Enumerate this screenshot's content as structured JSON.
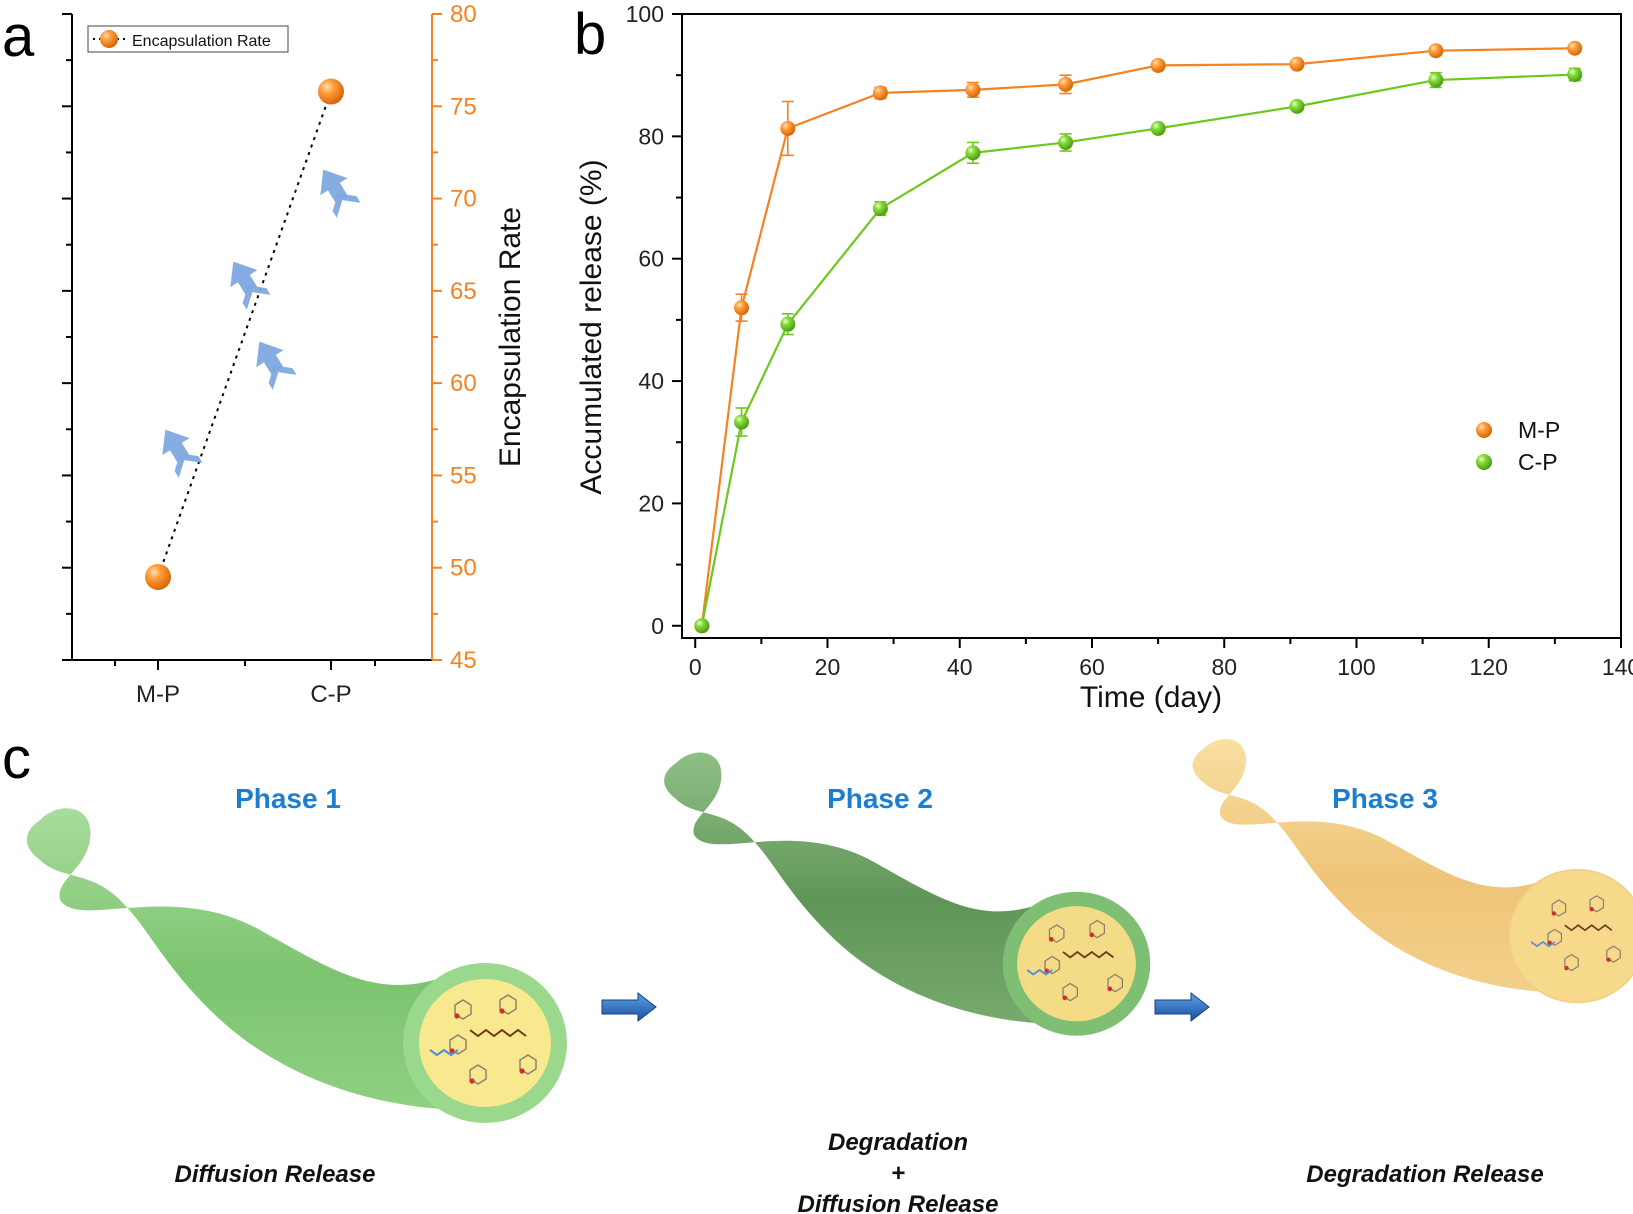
{
  "panels": {
    "a": "a",
    "b": "b",
    "c": "c"
  },
  "chart_data": [
    {
      "type": "scatter",
      "panel": "a",
      "categories": [
        "M-P",
        "C-P"
      ],
      "series": [
        {
          "name": "Encapsulation Rate",
          "values": [
            49.5,
            75.8
          ],
          "color": "#f58220"
        }
      ],
      "ylabel": "Encapsulation Rate",
      "ylim": [
        45,
        80
      ],
      "yticks": [
        45,
        50,
        55,
        60,
        65,
        70,
        75,
        80
      ],
      "ytick_labels": [
        "45",
        "50",
        "55",
        "60",
        "65",
        "70",
        "75",
        "80"
      ],
      "axis_color": "#f58220",
      "line_style": "dotted",
      "decoration": "arrow-up-icon",
      "legend": "top-left"
    },
    {
      "type": "line",
      "panel": "b",
      "xlabel": "Time (day)",
      "ylabel": "Accumulated release (%)",
      "xlim": [
        -2,
        140
      ],
      "ylim": [
        -2,
        100
      ],
      "xticks": [
        0,
        20,
        40,
        60,
        80,
        100,
        120,
        140
      ],
      "xtick_labels": [
        "0",
        "20",
        "40",
        "60",
        "80",
        "100",
        "120",
        "140"
      ],
      "yticks": [
        0,
        20,
        40,
        60,
        80,
        100
      ],
      "ytick_labels": [
        "0",
        "20",
        "40",
        "60",
        "80",
        "100"
      ],
      "legend": "right",
      "series": [
        {
          "name": "M-P",
          "color": "#f58220",
          "x": [
            1,
            7,
            14,
            28,
            42,
            56,
            70,
            91,
            112,
            133
          ],
          "y": [
            0,
            52,
            81.3,
            87.1,
            87.6,
            88.5,
            91.6,
            91.8,
            94,
            94.4
          ],
          "err": [
            0.5,
            2.2,
            4.4,
            0.9,
            1.2,
            1.5,
            0.7,
            0.6,
            0.7,
            0.6
          ]
        },
        {
          "name": "C-P",
          "color": "#6cc91c",
          "x": [
            1,
            7,
            14,
            28,
            42,
            56,
            70,
            91,
            112,
            133
          ],
          "y": [
            0,
            33.3,
            49.3,
            68.2,
            77.3,
            79,
            81.3,
            84.9,
            89.2,
            90.1
          ],
          "err": [
            0.5,
            2.3,
            1.7,
            1.1,
            1.7,
            1.4,
            0.6,
            0.6,
            1.2,
            1
          ]
        }
      ]
    }
  ],
  "diagram": {
    "phases": [
      {
        "title": "Phase 1",
        "label_lines": [
          "Diffusion Release"
        ],
        "fiber_color": "#84cc7a",
        "core_color": "#f8e98e",
        "shell_color": "#9ad88e"
      },
      {
        "title": "Phase 2",
        "label_lines": [
          "Degradation",
          "+",
          "Diffusion Release"
        ],
        "fiber_color": "#6ea565",
        "core_color": "#f4db85",
        "shell_color": "#7fbf73"
      },
      {
        "title": "Phase 3",
        "label_lines": [
          "Degradation Release"
        ],
        "fiber_color": "#f2cf86",
        "core_color": "#f7d98c",
        "shell_color": "#f2cf86"
      }
    ],
    "transition_icon": "arrow-right-icon"
  }
}
